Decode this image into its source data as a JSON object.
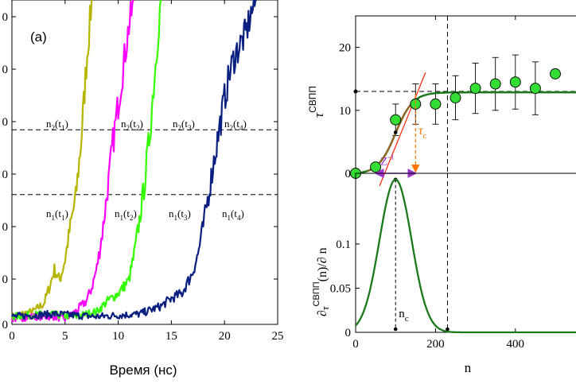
{
  "chart_data": [
    {
      "type": "line",
      "panel_label": "(a)",
      "xlabel": "Время (нс)",
      "xlim": [
        0,
        25
      ],
      "ylim": [
        0,
        1.25
      ],
      "xticks": [
        "0",
        "5",
        "10",
        "15",
        "20",
        "25"
      ],
      "yticks": [
        "0",
        "0",
        "0",
        "0",
        "0",
        "0",
        "0"
      ],
      "threshold_lines": [
        {
          "name": "n2",
          "y": 0.75
        },
        {
          "name": "n1",
          "y": 0.5
        }
      ],
      "annotations": [
        {
          "base": "n",
          "sub1": "2",
          "mid": "(t",
          "sub2": "1",
          "end": ")"
        },
        {
          "base": "n",
          "sub1": "2",
          "mid": "(t",
          "sub2": "2",
          "end": ")"
        },
        {
          "base": "n",
          "sub1": "2",
          "mid": "(t",
          "sub2": "3",
          "end": ")"
        },
        {
          "base": "n",
          "sub1": "2",
          "mid": "(t",
          "sub2": "4",
          "end": ")"
        },
        {
          "base": "n",
          "sub1": "1",
          "mid": "(t",
          "sub2": "1",
          "end": ")"
        },
        {
          "base": "n",
          "sub1": "1",
          "mid": "(t",
          "sub2": "2",
          "end": ")"
        },
        {
          "base": "n",
          "sub1": "1",
          "mid": "(t",
          "sub2": "3",
          "end": ")"
        },
        {
          "base": "n",
          "sub1": "1",
          "mid": "(t",
          "sub2": "4",
          "end": ")"
        }
      ],
      "series": [
        {
          "name": "t1",
          "color": "#b5b500",
          "x": [
            0,
            1,
            2,
            3,
            3.5,
            4,
            4.5,
            5,
            5.5,
            6,
            6.5,
            7,
            7.5
          ],
          "y": [
            0.03,
            0.04,
            0.05,
            0.08,
            0.14,
            0.21,
            0.17,
            0.25,
            0.38,
            0.49,
            0.7,
            1.0,
            1.25
          ]
        },
        {
          "name": "t2",
          "color": "#ff00ff",
          "x": [
            0,
            2,
            4,
            5,
            6,
            7,
            7.5,
            8,
            8.5,
            9,
            9.5,
            10,
            10.5,
            11,
            11.5
          ],
          "y": [
            0.02,
            0.03,
            0.03,
            0.02,
            0.05,
            0.09,
            0.14,
            0.22,
            0.35,
            0.52,
            0.7,
            0.85,
            1.0,
            1.15,
            1.25
          ]
        },
        {
          "name": "t3",
          "color": "#33ff00",
          "x": [
            0,
            3,
            6,
            8,
            9,
            10,
            11,
            11.5,
            12,
            12.5,
            13,
            13.5,
            14
          ],
          "y": [
            0.03,
            0.04,
            0.03,
            0.05,
            0.09,
            0.12,
            0.17,
            0.27,
            0.4,
            0.55,
            0.75,
            1.0,
            1.25
          ]
        },
        {
          "name": "t4",
          "color": "#0a2080",
          "x": [
            0,
            4,
            8,
            12,
            14,
            15,
            16,
            17,
            17.5,
            18,
            18.5,
            19,
            19.5,
            20,
            20.5,
            21,
            21.5,
            22,
            22.5,
            23
          ],
          "y": [
            0.03,
            0.04,
            0.03,
            0.04,
            0.07,
            0.1,
            0.12,
            0.2,
            0.27,
            0.38,
            0.5,
            0.63,
            0.75,
            0.87,
            0.97,
            1.04,
            1.08,
            1.12,
            1.2,
            1.25
          ]
        }
      ]
    },
    {
      "type": "scatter",
      "xlim": [
        0,
        560
      ],
      "ylim": [
        0,
        25
      ],
      "yticks": [
        "0",
        "10",
        "20"
      ],
      "ylabel": {
        "base": "τ",
        "sup": "СВПП"
      },
      "points": {
        "color": "#33dd33",
        "x": [
          0,
          50,
          100,
          150,
          200,
          250,
          300,
          350,
          400,
          450,
          500
        ],
        "y": [
          0,
          1,
          8.5,
          11,
          11,
          12,
          13.5,
          14.2,
          14.5,
          13.5,
          15.8
        ],
        "err": [
          0,
          0,
          2.5,
          3.2,
          3.2,
          3.5,
          4,
          4.2,
          4.3,
          4.2,
          0
        ]
      },
      "fit_curve": {
        "color": "#1a7a1a",
        "plateau": 13,
        "n_c": 100,
        "sigma": 40
      },
      "fit_core_color": "#a06020",
      "tangent_color": "#ff2200",
      "dashed_h_y": 13,
      "dashed_v_x": 230,
      "annotations": {
        "tau_c": "τ",
        "tau_c_sub": "c",
        "zinv": "Z",
        "zinv_sup": "-1"
      },
      "arrow_colors": {
        "tau_c": "#ff7700",
        "zinv": "#9933cc"
      }
    },
    {
      "type": "line",
      "xlabel": "n",
      "xlim": [
        0,
        560
      ],
      "ylim": [
        0,
        0.18
      ],
      "xticks": [
        "0",
        "200",
        "400"
      ],
      "yticks": [
        "0",
        "0.05",
        "0.1"
      ],
      "ylabel": {
        "a": "∂",
        "b": "τ",
        "sup": "СВПП",
        "c": "(n)/∂ n"
      },
      "curve": {
        "color": "#1a7a1a",
        "peak": 0.173,
        "center": 100,
        "sigma": 40
      },
      "nc_label": {
        "base": "n",
        "sub": "c"
      },
      "dashed_v_x": 230
    }
  ]
}
